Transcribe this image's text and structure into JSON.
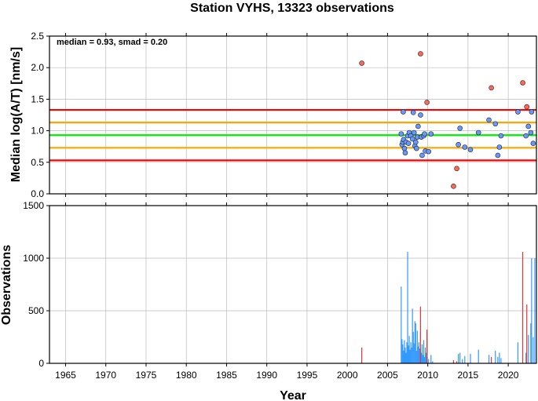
{
  "chart_data": [
    {
      "type": "scatter",
      "title": "Station VYHS, 13323 observations",
      "ylabel": "Median log(A/T) [nm/s]",
      "annotation": "median = 0.93, smad = 0.20",
      "xlim": [
        1963,
        2023.5
      ],
      "ylim": [
        0,
        2.5
      ],
      "yticks": [
        "0.0",
        "0.5",
        "1.0",
        "1.5",
        "2.0",
        "2.5"
      ],
      "grid": true,
      "reference_lines": [
        {
          "y": 0.93,
          "color": "#00ee00"
        },
        {
          "y": 1.13,
          "color": "#ffa500"
        },
        {
          "y": 0.73,
          "color": "#ffa500"
        },
        {
          "y": 1.33,
          "color": "#ff0000"
        },
        {
          "y": 0.53,
          "color": "#ff0000"
        }
      ],
      "series": [
        {
          "color": "#6699ff",
          "points": [
            [
              2006.7,
              0.95
            ],
            [
              2006.8,
              0.78
            ],
            [
              2006.9,
              0.82
            ],
            [
              2006.95,
              1.3
            ],
            [
              2007.0,
              0.86
            ],
            [
              2007.1,
              0.72
            ],
            [
              2007.2,
              0.65
            ],
            [
              2007.3,
              0.82
            ],
            [
              2007.5,
              0.92
            ],
            [
              2007.6,
              0.8
            ],
            [
              2007.7,
              0.97
            ],
            [
              2007.9,
              0.92
            ],
            [
              2008.1,
              0.87
            ],
            [
              2008.2,
              1.29
            ],
            [
              2008.3,
              0.97
            ],
            [
              2008.4,
              0.76
            ],
            [
              2008.5,
              0.82
            ],
            [
              2008.6,
              0.72
            ],
            [
              2008.7,
              0.9
            ],
            [
              2008.8,
              1.07
            ],
            [
              2009.1,
              1.25
            ],
            [
              2009.2,
              0.9
            ],
            [
              2009.3,
              0.61
            ],
            [
              2009.5,
              0.92
            ],
            [
              2009.6,
              0.95
            ],
            [
              2009.7,
              0.68
            ],
            [
              2010.1,
              0.67
            ],
            [
              2010.4,
              0.95
            ],
            [
              2013.8,
              0.78
            ],
            [
              2014.0,
              1.04
            ],
            [
              2014.6,
              0.74
            ],
            [
              2015.3,
              0.7
            ],
            [
              2016.3,
              0.97
            ],
            [
              2017.6,
              1.17
            ],
            [
              2018.4,
              1.11
            ],
            [
              2018.7,
              0.61
            ],
            [
              2018.9,
              0.74
            ],
            [
              2019.1,
              0.92
            ],
            [
              2021.2,
              1.3
            ],
            [
              2022.2,
              0.92
            ],
            [
              2022.5,
              1.07
            ],
            [
              2022.8,
              0.97
            ],
            [
              2022.9,
              1.3
            ],
            [
              2023.1,
              0.8
            ]
          ]
        },
        {
          "color": "#ff6655",
          "points": [
            [
              2001.8,
              2.07
            ],
            [
              2009.1,
              2.22
            ],
            [
              2009.9,
              1.45
            ],
            [
              2013.2,
              0.12
            ],
            [
              2013.6,
              0.4
            ],
            [
              2017.9,
              1.68
            ],
            [
              2021.8,
              1.76
            ],
            [
              2022.3,
              1.38
            ]
          ]
        }
      ]
    },
    {
      "type": "bar",
      "xlabel": "Year",
      "ylabel": "Observations",
      "xlim": [
        1963,
        2023.5
      ],
      "ylim": [
        0,
        1500
      ],
      "yticks": [
        "0",
        "500",
        "1000",
        "1500"
      ],
      "xticks": [
        "1965",
        "1970",
        "1975",
        "1980",
        "1985",
        "1990",
        "1995",
        "2000",
        "2005",
        "2010",
        "2015",
        "2020"
      ],
      "grid": true,
      "series": [
        {
          "color": "#3399ff",
          "points": [
            [
              2006.7,
              730
            ],
            [
              2006.8,
              230
            ],
            [
              2006.9,
              180
            ],
            [
              2007.0,
              120
            ],
            [
              2007.1,
              220
            ],
            [
              2007.2,
              150
            ],
            [
              2007.3,
              100
            ],
            [
              2007.4,
              200
            ],
            [
              2007.5,
              1060
            ],
            [
              2007.6,
              170
            ],
            [
              2007.7,
              260
            ],
            [
              2007.8,
              130
            ],
            [
              2007.9,
              200
            ],
            [
              2008.0,
              150
            ],
            [
              2008.1,
              520
            ],
            [
              2008.2,
              300
            ],
            [
              2008.3,
              190
            ],
            [
              2008.4,
              400
            ],
            [
              2008.5,
              380
            ],
            [
              2008.6,
              120
            ],
            [
              2008.7,
              310
            ],
            [
              2008.8,
              160
            ],
            [
              2008.9,
              200
            ],
            [
              2009.0,
              140
            ],
            [
              2009.1,
              300
            ],
            [
              2009.2,
              100
            ],
            [
              2009.3,
              180
            ],
            [
              2009.4,
              80
            ],
            [
              2009.5,
              220
            ],
            [
              2009.6,
              60
            ],
            [
              2009.7,
              150
            ],
            [
              2009.8,
              100
            ],
            [
              2009.9,
              60
            ],
            [
              2010.1,
              40
            ],
            [
              2010.4,
              80
            ],
            [
              2010.6,
              20
            ],
            [
              2013.8,
              90
            ],
            [
              2014.0,
              100
            ],
            [
              2014.3,
              40
            ],
            [
              2014.6,
              70
            ],
            [
              2015.3,
              90
            ],
            [
              2016.3,
              130
            ],
            [
              2017.6,
              80
            ],
            [
              2018.4,
              120
            ],
            [
              2018.7,
              60
            ],
            [
              2018.9,
              100
            ],
            [
              2019.1,
              50
            ],
            [
              2021.2,
              200
            ],
            [
              2022.2,
              100
            ],
            [
              2022.5,
              270
            ],
            [
              2022.8,
              380
            ],
            [
              2022.9,
              1000
            ],
            [
              2023.1,
              250
            ],
            [
              2023.3,
              1000
            ]
          ]
        },
        {
          "color": "#ee3333",
          "points": [
            [
              2001.8,
              150
            ],
            [
              2009.1,
              540
            ],
            [
              2009.9,
              320
            ],
            [
              2013.2,
              30
            ],
            [
              2013.6,
              20
            ],
            [
              2017.9,
              60
            ],
            [
              2021.8,
              1060
            ],
            [
              2022.3,
              560
            ]
          ]
        }
      ]
    }
  ]
}
